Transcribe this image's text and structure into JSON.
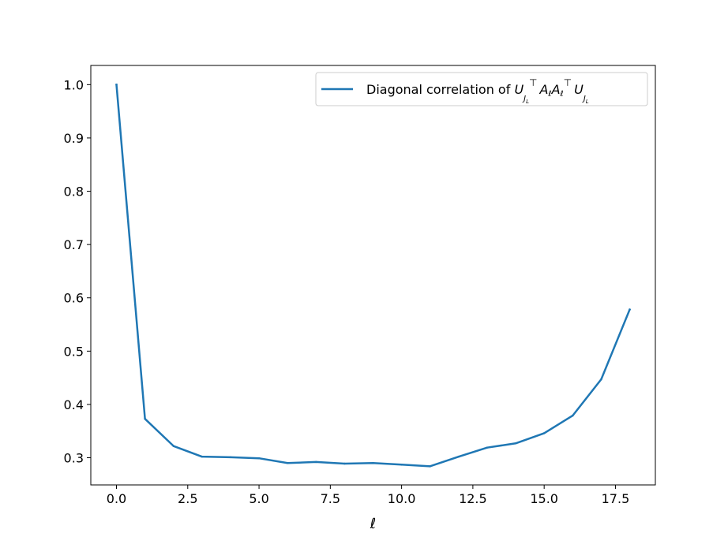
{
  "chart_data": {
    "type": "line",
    "title": "",
    "xlabel": "ℓ",
    "ylabel": "",
    "xlim": [
      -0.9,
      18.9
    ],
    "ylim": [
      0.249,
      1.036
    ],
    "xticks": [
      0.0,
      2.5,
      5.0,
      7.5,
      10.0,
      12.5,
      15.0,
      17.5
    ],
    "xtick_labels": [
      "0.0",
      "2.5",
      "5.0",
      "7.5",
      "10.0",
      "12.5",
      "15.0",
      "17.5"
    ],
    "yticks": [
      0.3,
      0.4,
      0.5,
      0.6,
      0.7,
      0.8,
      0.9,
      1.0
    ],
    "ytick_labels": [
      "0.3",
      "0.4",
      "0.5",
      "0.6",
      "0.7",
      "0.8",
      "0.9",
      "1.0"
    ],
    "grid": false,
    "legend_position": "upper right",
    "series": [
      {
        "name": "Diagonal correlation of U_{J_L}^⊤ A_ℓ A_ℓ^⊤ U_{J_L}",
        "color": "#1f77b4",
        "x": [
          0,
          1,
          2,
          3,
          4,
          5,
          6,
          7,
          8,
          9,
          10,
          11,
          12,
          13,
          14,
          15,
          16,
          17,
          18
        ],
        "y": [
          1.0,
          0.373,
          0.322,
          0.302,
          0.301,
          0.299,
          0.29,
          0.292,
          0.289,
          0.29,
          0.287,
          0.284,
          0.302,
          0.319,
          0.327,
          0.346,
          0.379,
          0.447,
          0.578
        ]
      }
    ]
  },
  "legend": {
    "prefix": "Diagonal correlation of ",
    "U": "U",
    "J": "J",
    "L": "L",
    "top": "⊤",
    "A": "A",
    "ell": "ℓ"
  }
}
